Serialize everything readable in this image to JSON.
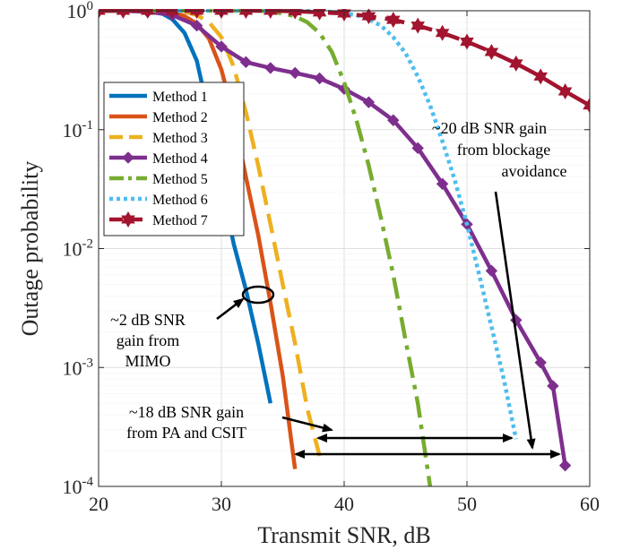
{
  "chart_data": {
    "type": "line",
    "xlabel": "Transmit SNR, dB",
    "ylabel": "Outage probability",
    "xlim": [
      20,
      60
    ],
    "ylim": [
      0.0001,
      1
    ],
    "yscale": "log",
    "grid": true,
    "legend_position": "left-middle",
    "x_ticks": [
      20,
      30,
      40,
      50,
      60
    ],
    "x_tick_labels": [
      "20",
      "30",
      "40",
      "50",
      "60"
    ],
    "y_ticks": [
      {
        "value": 1,
        "base": "10",
        "exp": "0"
      },
      {
        "value": 0.1,
        "base": "10",
        "exp": "-1"
      },
      {
        "value": 0.01,
        "base": "10",
        "exp": "-2"
      },
      {
        "value": 0.001,
        "base": "10",
        "exp": "-3"
      },
      {
        "value": 0.0001,
        "base": "10",
        "exp": "-4"
      }
    ],
    "series": [
      {
        "name": "Method 1",
        "color": "#0072BD",
        "style": "solid",
        "marker": "none",
        "x": [
          20,
          24,
          25,
          26,
          27,
          28,
          29,
          30,
          31,
          32,
          33,
          34
        ],
        "y": [
          1,
          1,
          0.97,
          0.85,
          0.65,
          0.38,
          0.13,
          0.035,
          0.011,
          0.0045,
          0.0016,
          0.0005
        ]
      },
      {
        "name": "Method 2",
        "color": "#D95319",
        "style": "solid",
        "marker": "none",
        "x": [
          20,
          25,
          26,
          27,
          28,
          29,
          30,
          31,
          32,
          33,
          34,
          35,
          36
        ],
        "y": [
          1,
          1,
          0.98,
          0.9,
          0.78,
          0.58,
          0.32,
          0.13,
          0.04,
          0.013,
          0.0035,
          0.00085,
          0.00014
        ]
      },
      {
        "name": "Method 3",
        "color": "#EDB120",
        "style": "dashed",
        "marker": "none",
        "x": [
          20,
          26,
          27,
          28,
          29,
          30,
          31,
          32,
          33,
          34,
          35,
          36,
          37,
          38
        ],
        "y": [
          1,
          1,
          0.98,
          0.92,
          0.8,
          0.6,
          0.34,
          0.14,
          0.05,
          0.016,
          0.005,
          0.0016,
          0.00045,
          0.00018
        ]
      },
      {
        "name": "Method 4",
        "color": "#7E2F8E",
        "style": "solid",
        "marker": "diamond",
        "x": [
          20,
          22,
          24,
          26,
          28,
          30,
          32,
          34,
          36,
          38,
          40,
          42,
          44,
          46,
          48,
          50,
          52,
          54,
          56,
          57,
          58
        ],
        "y": [
          1,
          1,
          0.98,
          0.92,
          0.75,
          0.5,
          0.37,
          0.33,
          0.3,
          0.27,
          0.22,
          0.17,
          0.12,
          0.07,
          0.035,
          0.016,
          0.0065,
          0.0025,
          0.0011,
          0.0007,
          0.00015
        ]
      },
      {
        "name": "Method 5",
        "color": "#77AC30",
        "style": "dashdot",
        "marker": "none",
        "x": [
          20,
          33,
          34,
          35,
          36,
          37,
          38,
          39,
          40,
          41,
          42,
          43,
          44,
          45,
          46,
          47
        ],
        "y": [
          1,
          1,
          0.98,
          0.95,
          0.9,
          0.8,
          0.65,
          0.45,
          0.25,
          0.12,
          0.05,
          0.018,
          0.006,
          0.0017,
          0.0005,
          0.0001
        ]
      },
      {
        "name": "Method 6",
        "color": "#4DBEEE",
        "style": "dotted",
        "marker": "none",
        "x": [
          20,
          37,
          39,
          41,
          42,
          43,
          44,
          45,
          46,
          47,
          48,
          49,
          50,
          51,
          52,
          53,
          54
        ],
        "y": [
          1,
          1,
          0.98,
          0.92,
          0.85,
          0.75,
          0.6,
          0.44,
          0.28,
          0.16,
          0.08,
          0.038,
          0.016,
          0.006,
          0.0022,
          0.0008,
          0.00025
        ]
      },
      {
        "name": "Method 7",
        "color": "#A2142F",
        "style": "dashed",
        "marker": "hexagram",
        "x": [
          20,
          22,
          24,
          26,
          28,
          30,
          32,
          34,
          36,
          38,
          40,
          42,
          44,
          46,
          48,
          50,
          52,
          54,
          56,
          58,
          60
        ],
        "y": [
          1,
          1,
          1,
          1,
          1,
          1,
          1,
          1,
          0.99,
          0.97,
          0.95,
          0.9,
          0.84,
          0.75,
          0.65,
          0.55,
          0.45,
          0.36,
          0.28,
          0.21,
          0.16
        ]
      }
    ],
    "annotations": [
      {
        "lines": [
          "~2 dB SNR",
          "gain from",
          "MIMO"
        ]
      },
      {
        "lines": [
          "~18 dB SNR gain",
          "from PA and CSIT"
        ]
      },
      {
        "lines": [
          "~20 dB SNR gain",
          "from blockage",
          "avoidance"
        ]
      }
    ]
  }
}
